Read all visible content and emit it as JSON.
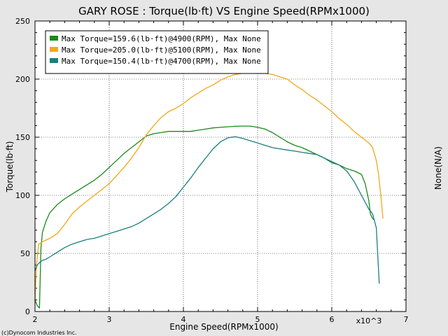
{
  "chart_data": {
    "type": "line",
    "title": "GARY ROSE  : Torque(lb·ft) VS Engine Speed(RPMx1000)",
    "xlabel": "Engine Speed(RPMx1000)",
    "ylabel": "Torque(lb·ft)",
    "y2label": "None(N/A)",
    "x_multiplier_label": "x10^3",
    "footer": "(c)Dynocom Industries Inc.",
    "xlim": [
      2,
      7
    ],
    "ylim": [
      0,
      250
    ],
    "xticks": [
      2,
      3,
      4,
      5,
      6,
      7
    ],
    "yticks": [
      0,
      50,
      100,
      150,
      200,
      250
    ],
    "grid": true,
    "legend_position": "top-left",
    "series": [
      {
        "name": "Max Torque=159.6(lb·ft)@4900(RPM), Max None",
        "color": "#1a8a1a",
        "x": [
          2.0,
          2.03,
          2.06,
          2.08,
          2.1,
          2.15,
          2.2,
          2.3,
          2.4,
          2.5,
          2.6,
          2.7,
          2.8,
          2.9,
          3.0,
          3.1,
          3.2,
          3.3,
          3.4,
          3.5,
          3.6,
          3.7,
          3.8,
          3.9,
          4.0,
          4.1,
          4.2,
          4.3,
          4.4,
          4.5,
          4.6,
          4.7,
          4.8,
          4.9,
          5.0,
          5.1,
          5.2,
          5.3,
          5.4,
          5.5,
          5.6,
          5.7,
          5.8,
          5.9,
          6.0,
          6.1,
          6.2,
          6.3,
          6.4,
          6.45,
          6.5,
          6.52,
          6.55,
          6.57
        ],
        "values": [
          10,
          5,
          3,
          55,
          68,
          78,
          85,
          92,
          97,
          101,
          105,
          109,
          113,
          118,
          124,
          130,
          136,
          141,
          146,
          151,
          153,
          154,
          155,
          155,
          155,
          155,
          156,
          157,
          158,
          158.5,
          159,
          159.4,
          159.6,
          159.6,
          158.5,
          157,
          154,
          150,
          146,
          143,
          141,
          138,
          135,
          132,
          128,
          126,
          123,
          121,
          118,
          110,
          95,
          84,
          80,
          79
        ]
      },
      {
        "name": "Max Torque=205.0(lb·ft)@5100(RPM), Max None",
        "color": "#f0a818",
        "x": [
          2.0,
          2.02,
          2.05,
          2.1,
          2.2,
          2.3,
          2.4,
          2.5,
          2.6,
          2.7,
          2.8,
          2.9,
          3.0,
          3.1,
          3.2,
          3.3,
          3.4,
          3.5,
          3.6,
          3.7,
          3.8,
          3.9,
          4.0,
          4.1,
          4.2,
          4.3,
          4.4,
          4.5,
          4.6,
          4.7,
          4.8,
          4.9,
          5.0,
          5.1,
          5.2,
          5.3,
          5.4,
          5.5,
          5.6,
          5.7,
          5.8,
          5.9,
          6.0,
          6.1,
          6.2,
          6.3,
          6.4,
          6.5,
          6.55,
          6.6,
          6.63,
          6.66,
          6.69
        ],
        "values": [
          10,
          40,
          58,
          60,
          63,
          67,
          75,
          84,
          90,
          95,
          100,
          105,
          110,
          117,
          124,
          132,
          141,
          152,
          160,
          167,
          172,
          175,
          179,
          184,
          188,
          192,
          195,
          199,
          202,
          204,
          205,
          205,
          205,
          205,
          204,
          202,
          200,
          195,
          191,
          186,
          182,
          177,
          172,
          166,
          161,
          155,
          150,
          145,
          141,
          130,
          118,
          100,
          80
        ]
      },
      {
        "name": "Max Torque=150.4(lb·ft)@4700(RPM), Max None",
        "color": "#1a7f80",
        "x": [
          2.0,
          2.03,
          2.06,
          2.1,
          2.15,
          2.2,
          2.3,
          2.4,
          2.5,
          2.6,
          2.7,
          2.8,
          2.9,
          3.0,
          3.1,
          3.2,
          3.3,
          3.4,
          3.5,
          3.6,
          3.7,
          3.8,
          3.9,
          4.0,
          4.1,
          4.2,
          4.3,
          4.4,
          4.5,
          4.6,
          4.7,
          4.8,
          4.9,
          5.0,
          5.1,
          5.2,
          5.3,
          5.4,
          5.5,
          5.6,
          5.7,
          5.8,
          5.9,
          6.0,
          6.1,
          6.2,
          6.3,
          6.4,
          6.5,
          6.55,
          6.6,
          6.64
        ],
        "values": [
          35,
          40,
          42,
          44,
          45,
          47,
          51,
          55,
          58,
          60,
          62,
          63,
          65,
          67,
          69,
          71,
          73,
          76,
          80,
          84,
          88,
          93,
          99,
          107,
          115,
          124,
          132,
          140,
          146,
          149.5,
          150.4,
          149,
          147,
          145,
          143,
          141,
          140,
          139,
          138,
          137,
          136,
          135,
          132,
          129,
          126,
          121,
          112,
          100,
          88,
          84,
          72,
          24
        ]
      }
    ]
  }
}
